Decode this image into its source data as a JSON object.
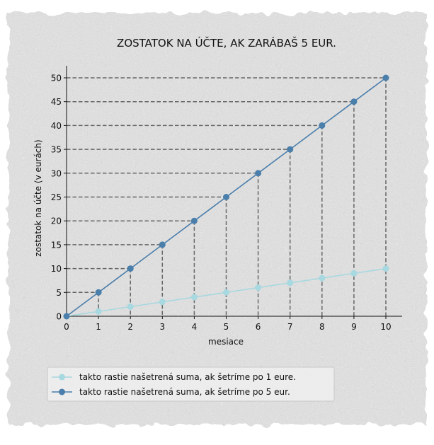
{
  "chart_data": {
    "type": "line",
    "title": "ZOSTATOK NA ÚČTE, AK ZARÁBAŠ 5 EUR.",
    "xlabel": "mesiace",
    "ylabel": "zostatok na účte (v eurách)",
    "x": [
      0,
      1,
      2,
      3,
      4,
      5,
      6,
      7,
      8,
      9,
      10
    ],
    "xlim": [
      0,
      10
    ],
    "ylim": [
      0,
      50
    ],
    "x_ticks": [
      "0",
      "1",
      "2",
      "3",
      "4",
      "5",
      "6",
      "7",
      "8",
      "9",
      "10"
    ],
    "y_ticks": [
      "0",
      "5",
      "10",
      "15",
      "20",
      "25",
      "30",
      "35",
      "40",
      "45",
      "50"
    ],
    "grid": false,
    "guide_lines": "dashed lines from each point of the 5-euro series to both axes",
    "legend_position": "bottom-left",
    "series": [
      {
        "name": "takto rastie našetrená suma, ak šetríme po 1 eure.",
        "color": "#a8d8e0",
        "values": [
          0,
          1,
          2,
          3,
          4,
          5,
          6,
          7,
          8,
          9,
          10
        ]
      },
      {
        "name": "takto rastie našetrená suma, ak šetríme po 5 eur.",
        "color": "#4a7eab",
        "values": [
          0,
          5,
          10,
          15,
          20,
          25,
          30,
          35,
          40,
          45,
          50
        ]
      }
    ],
    "background": "crumpled paper texture"
  }
}
